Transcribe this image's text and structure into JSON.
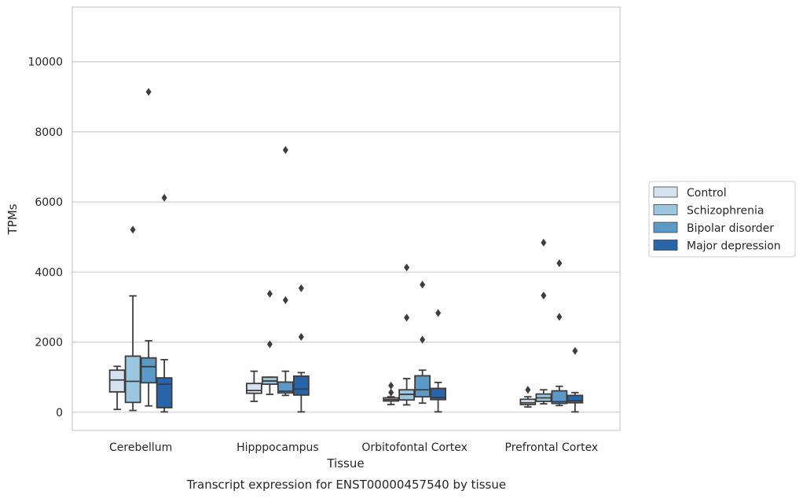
{
  "chart_data": {
    "type": "box",
    "title": "",
    "caption": "Transcript expression for ENST00000457540 by tissue",
    "xlabel": "Tissue",
    "ylabel": "TPMs",
    "ylim": [
      -520,
      11560
    ],
    "yticks": [
      0,
      2000,
      4000,
      6000,
      8000,
      10000
    ],
    "grid": "horizontal",
    "legend_position": "right",
    "categories": [
      "Cerebellum",
      "Hipppocampus",
      "Orbitofontal Cortex",
      "Prefrontal Cortex"
    ],
    "series": [
      {
        "name": "Control",
        "color": "#d4e3f1",
        "boxes": [
          {
            "whislo": 80,
            "q1": 580,
            "med": 920,
            "q3": 1200,
            "whishi": 1310,
            "fliers": []
          },
          {
            "whislo": 310,
            "q1": 540,
            "med": 620,
            "q3": 820,
            "whishi": 1170,
            "fliers": []
          },
          {
            "whislo": 220,
            "q1": 320,
            "med": 360,
            "q3": 410,
            "whishi": 440,
            "fliers": [
              560,
              760
            ]
          },
          {
            "whislo": 150,
            "q1": 220,
            "med": 270,
            "q3": 370,
            "whishi": 440,
            "fliers": [
              640
            ]
          }
        ]
      },
      {
        "name": "Schizophrenia",
        "color": "#9bc6df",
        "boxes": [
          {
            "whislo": 50,
            "q1": 280,
            "med": 880,
            "q3": 1600,
            "whishi": 3320,
            "fliers": [
              5210
            ]
          },
          {
            "whislo": 510,
            "q1": 800,
            "med": 890,
            "q3": 1000,
            "whishi": 1000,
            "fliers": [
              1940,
              3380
            ]
          },
          {
            "whislo": 210,
            "q1": 350,
            "med": 510,
            "q3": 640,
            "whishi": 960,
            "fliers": [
              2700,
              4130
            ]
          },
          {
            "whislo": 240,
            "q1": 310,
            "med": 410,
            "q3": 520,
            "whishi": 640,
            "fliers": [
              3330,
              4840
            ]
          }
        ]
      },
      {
        "name": "Bipolar disorder",
        "color": "#5a9ac8",
        "boxes": [
          {
            "whislo": 180,
            "q1": 840,
            "med": 1300,
            "q3": 1550,
            "whishi": 2040,
            "fliers": [
              9140
            ]
          },
          {
            "whislo": 480,
            "q1": 550,
            "med": 600,
            "q3": 860,
            "whishi": 1170,
            "fliers": [
              3200,
              7480
            ]
          },
          {
            "whislo": 260,
            "q1": 440,
            "med": 640,
            "q3": 1040,
            "whishi": 1200,
            "fliers": [
              2070,
              3640
            ]
          },
          {
            "whislo": 190,
            "q1": 250,
            "med": 300,
            "q3": 610,
            "whishi": 740,
            "fliers": [
              2720,
              4250
            ]
          }
        ]
      },
      {
        "name": "Major depression",
        "color": "#2765ab",
        "boxes": [
          {
            "whislo": 10,
            "q1": 130,
            "med": 800,
            "q3": 980,
            "whishi": 1500,
            "fliers": [
              6120
            ]
          },
          {
            "whislo": 10,
            "q1": 490,
            "med": 660,
            "q3": 1030,
            "whishi": 1130,
            "fliers": [
              2150,
              3540
            ]
          },
          {
            "whislo": 10,
            "q1": 360,
            "med": 420,
            "q3": 680,
            "whishi": 850,
            "fliers": [
              2830
            ]
          },
          {
            "whislo": 10,
            "q1": 270,
            "med": 330,
            "q3": 480,
            "whishi": 560,
            "fliers": [
              1750
            ]
          }
        ]
      }
    ]
  }
}
